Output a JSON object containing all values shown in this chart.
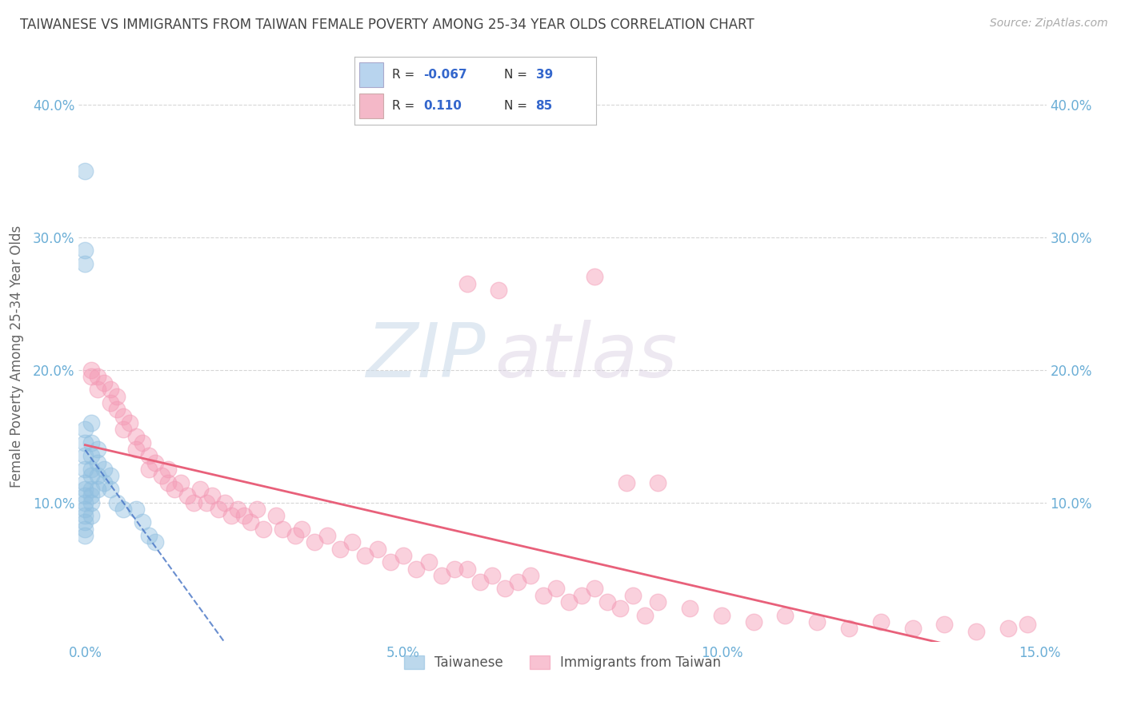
{
  "title": "TAIWANESE VS IMMIGRANTS FROM TAIWAN FEMALE POVERTY AMONG 25-34 YEAR OLDS CORRELATION CHART",
  "source": "Source: ZipAtlas.com",
  "ylabel": "Female Poverty Among 25-34 Year Olds",
  "xlabel": "",
  "xlim": [
    -0.001,
    0.151
  ],
  "ylim": [
    -0.005,
    0.425
  ],
  "xticks": [
    0.0,
    0.05,
    0.1,
    0.15
  ],
  "xticklabels": [
    "0.0%",
    "5.0%",
    "10.0%",
    "15.0%"
  ],
  "yticks": [
    0.1,
    0.2,
    0.3,
    0.4
  ],
  "yticklabels": [
    "10.0%",
    "20.0%",
    "30.0%",
    "40.0%"
  ],
  "watermark_zip": "ZIP",
  "watermark_atlas": "atlas",
  "series1_name": "Taiwanese",
  "series2_name": "Immigrants from Taiwan",
  "series1_color": "#90bfe0",
  "series2_color": "#f49ab5",
  "series1_line_color": "#4472c4",
  "series2_line_color": "#e8607a",
  "title_color": "#444444",
  "axis_color": "#6baed6",
  "background_color": "#ffffff",
  "grid_color": "#cccccc",
  "tw_x": [
    0.0,
    0.0,
    0.0,
    0.0,
    0.0,
    0.0,
    0.0,
    0.0,
    0.0,
    0.0,
    0.0,
    0.0,
    0.0,
    0.0,
    0.0,
    0.0,
    0.001,
    0.001,
    0.001,
    0.001,
    0.001,
    0.001,
    0.001,
    0.001,
    0.001,
    0.002,
    0.002,
    0.002,
    0.002,
    0.003,
    0.003,
    0.004,
    0.004,
    0.005,
    0.006,
    0.008,
    0.009,
    0.01,
    0.011
  ],
  "tw_y": [
    0.35,
    0.29,
    0.28,
    0.155,
    0.145,
    0.135,
    0.125,
    0.115,
    0.11,
    0.105,
    0.1,
    0.095,
    0.09,
    0.085,
    0.08,
    0.075,
    0.16,
    0.145,
    0.135,
    0.125,
    0.12,
    0.11,
    0.105,
    0.1,
    0.09,
    0.14,
    0.13,
    0.12,
    0.11,
    0.125,
    0.115,
    0.12,
    0.11,
    0.1,
    0.095,
    0.095,
    0.085,
    0.075,
    0.07
  ],
  "im_x": [
    0.001,
    0.001,
    0.002,
    0.002,
    0.003,
    0.004,
    0.004,
    0.005,
    0.005,
    0.006,
    0.006,
    0.007,
    0.008,
    0.008,
    0.009,
    0.01,
    0.01,
    0.011,
    0.012,
    0.013,
    0.013,
    0.014,
    0.015,
    0.016,
    0.017,
    0.018,
    0.019,
    0.02,
    0.021,
    0.022,
    0.023,
    0.024,
    0.025,
    0.026,
    0.027,
    0.028,
    0.03,
    0.031,
    0.033,
    0.034,
    0.036,
    0.038,
    0.04,
    0.042,
    0.044,
    0.046,
    0.048,
    0.05,
    0.052,
    0.054,
    0.056,
    0.058,
    0.06,
    0.062,
    0.064,
    0.066,
    0.068,
    0.07,
    0.072,
    0.074,
    0.076,
    0.078,
    0.08,
    0.082,
    0.084,
    0.086,
    0.088,
    0.09,
    0.095,
    0.1,
    0.105,
    0.11,
    0.115,
    0.12,
    0.125,
    0.13,
    0.135,
    0.14,
    0.145,
    0.148,
    0.06,
    0.065,
    0.08,
    0.085,
    0.09
  ],
  "im_y": [
    0.2,
    0.195,
    0.195,
    0.185,
    0.19,
    0.185,
    0.175,
    0.18,
    0.17,
    0.165,
    0.155,
    0.16,
    0.15,
    0.14,
    0.145,
    0.135,
    0.125,
    0.13,
    0.12,
    0.115,
    0.125,
    0.11,
    0.115,
    0.105,
    0.1,
    0.11,
    0.1,
    0.105,
    0.095,
    0.1,
    0.09,
    0.095,
    0.09,
    0.085,
    0.095,
    0.08,
    0.09,
    0.08,
    0.075,
    0.08,
    0.07,
    0.075,
    0.065,
    0.07,
    0.06,
    0.065,
    0.055,
    0.06,
    0.05,
    0.055,
    0.045,
    0.05,
    0.05,
    0.04,
    0.045,
    0.035,
    0.04,
    0.045,
    0.03,
    0.035,
    0.025,
    0.03,
    0.035,
    0.025,
    0.02,
    0.03,
    0.015,
    0.025,
    0.02,
    0.015,
    0.01,
    0.015,
    0.01,
    0.005,
    0.01,
    0.005,
    0.008,
    0.003,
    0.005,
    0.008,
    0.265,
    0.26,
    0.27,
    0.115,
    0.115
  ]
}
